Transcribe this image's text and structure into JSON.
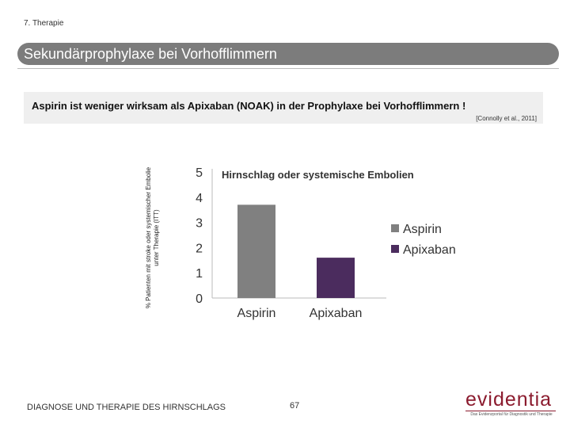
{
  "header": {
    "chapter": "7. Therapie",
    "title": "Sekundärprophylaxe bei Vorhofflimmern"
  },
  "subtitle": "Aspirin ist weniger wirksam als Apixaban (NOAK) in der Prophylaxe bei Vorhofflimmern !",
  "citation": "[Connolly et al., 2011]",
  "footer": {
    "text": "DIAGNOSE UND THERAPIE DES HIRNSCHLAGS",
    "page": "67"
  },
  "logo": {
    "word": "evidentia",
    "tagline": "Das Evidenzportal für Diagnostik und Therapie"
  },
  "colors": {
    "aspirin": "#808080",
    "apixaban": "#4b2c5e"
  },
  "chart_data": {
    "type": "bar",
    "title": "Hirnschlag oder systemische Embolien",
    "categories": [
      "Aspirin",
      "Apixaban"
    ],
    "values": [
      3.7,
      1.6
    ],
    "ylabel": "% Patienten mit stroke oder systemischer Embolie unter Therapie (ITT)",
    "ylim": [
      0,
      5
    ],
    "yticks": [
      "0",
      "1",
      "2",
      "3",
      "4",
      "5"
    ],
    "legend": [
      "Aspirin",
      "Apixaban"
    ],
    "legend_position": "right",
    "grid": false
  }
}
